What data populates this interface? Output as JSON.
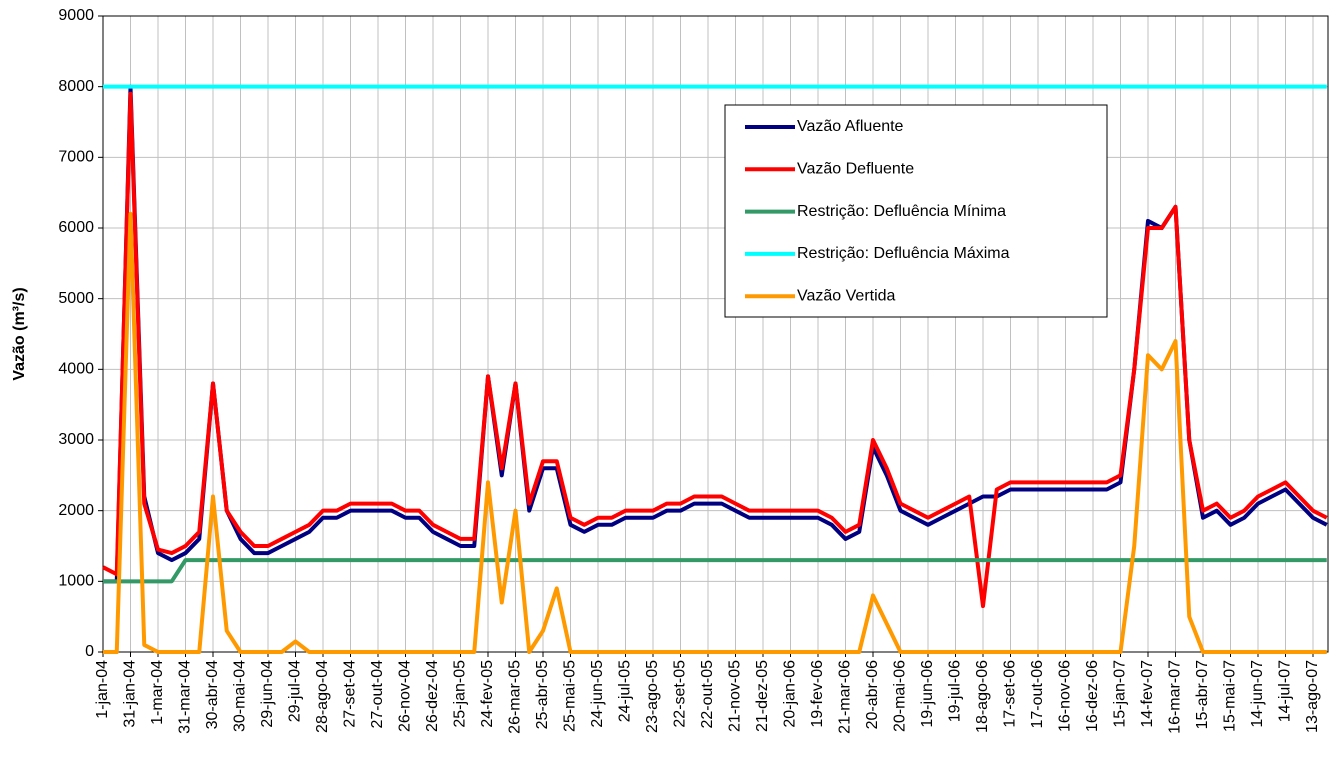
{
  "chart_data": {
    "type": "line",
    "y_label": "Vazão (m³/s)",
    "categories": [
      "1-jan-04",
      null,
      "31-jan-04",
      null,
      "1-mar-04",
      null,
      "31-mar-04",
      null,
      "30-abr-04",
      null,
      "30-mai-04",
      null,
      "29-jun-04",
      null,
      "29-jul-04",
      null,
      "28-ago-04",
      null,
      "27-set-04",
      null,
      "27-out-04",
      null,
      "26-nov-04",
      null,
      "26-dez-04",
      null,
      "25-jan-05",
      null,
      "24-fev-05",
      null,
      "26-mar-05",
      null,
      "25-abr-05",
      null,
      "25-mai-05",
      null,
      "24-jun-05",
      null,
      "24-jul-05",
      null,
      "23-ago-05",
      null,
      "22-set-05",
      null,
      "22-out-05",
      null,
      "21-nov-05",
      null,
      "21-dez-05",
      null,
      "20-jan-06",
      null,
      "19-fev-06",
      null,
      "21-mar-06",
      null,
      "20-abr-06",
      null,
      "20-mai-06",
      null,
      "19-jun-06",
      null,
      "19-jul-06",
      null,
      "18-ago-06",
      null,
      "17-set-06",
      null,
      "17-out-06",
      null,
      "16-nov-06",
      null,
      "16-dez-06",
      null,
      "15-jan-07",
      null,
      "14-fev-07",
      null,
      "16-mar-07",
      null,
      "15-abr-07",
      null,
      "15-mai-07",
      null,
      "14-jun-07",
      null,
      "14-jul-07",
      null,
      "13-ago-07",
      null
    ],
    "series": [
      {
        "name": "Vazão Afluente",
        "color": "#000080",
        "values": [
          1000,
          1000,
          8000,
          2200,
          1400,
          1300,
          1400,
          1600,
          3800,
          2000,
          1600,
          1400,
          1400,
          1500,
          1600,
          1700,
          1900,
          1900,
          2000,
          2000,
          2000,
          2000,
          1900,
          1900,
          1700,
          1600,
          1500,
          1500,
          3900,
          2500,
          3800,
          2000,
          2600,
          2600,
          1800,
          1700,
          1800,
          1800,
          1900,
          1900,
          1900,
          2000,
          2000,
          2100,
          2100,
          2100,
          2000,
          1900,
          1900,
          1900,
          1900,
          1900,
          1900,
          1800,
          1600,
          1700,
          2900,
          2500,
          2000,
          1900,
          1800,
          1900,
          2000,
          2100,
          2200,
          2200,
          2300,
          2300,
          2300,
          2300,
          2300,
          2300,
          2300,
          2300,
          2400,
          4000,
          6100,
          6000,
          6300,
          3000,
          1900,
          2000,
          1800,
          1900,
          2100,
          2200,
          2300,
          2100,
          1900,
          1800
        ]
      },
      {
        "name": "Vazão Defluente",
        "color": "#ff0000",
        "values": [
          1200,
          1100,
          7900,
          2100,
          1450,
          1400,
          1500,
          1700,
          3800,
          2000,
          1700,
          1500,
          1500,
          1600,
          1700,
          1800,
          2000,
          2000,
          2100,
          2100,
          2100,
          2100,
          2000,
          2000,
          1800,
          1700,
          1600,
          1600,
          3900,
          2600,
          3800,
          2100,
          2700,
          2700,
          1900,
          1800,
          1900,
          1900,
          2000,
          2000,
          2000,
          2100,
          2100,
          2200,
          2200,
          2200,
          2100,
          2000,
          2000,
          2000,
          2000,
          2000,
          2000,
          1900,
          1700,
          1800,
          3000,
          2600,
          2100,
          2000,
          1900,
          2000,
          2100,
          2200,
          650,
          2300,
          2400,
          2400,
          2400,
          2400,
          2400,
          2400,
          2400,
          2400,
          2500,
          4000,
          6000,
          6000,
          6300,
          3000,
          2000,
          2100,
          1900,
          2000,
          2200,
          2300,
          2400,
          2200,
          2000,
          1900
        ]
      },
      {
        "name": "Restrição: Defluência Mínima",
        "color": "#339966",
        "values": [
          1000,
          1000,
          1000,
          1000,
          1000,
          1000,
          1300,
          1300,
          1300,
          1300,
          1300,
          1300,
          1300,
          1300,
          1300,
          1300,
          1300,
          1300,
          1300,
          1300,
          1300,
          1300,
          1300,
          1300,
          1300,
          1300,
          1300,
          1300,
          1300,
          1300,
          1300,
          1300,
          1300,
          1300,
          1300,
          1300,
          1300,
          1300,
          1300,
          1300,
          1300,
          1300,
          1300,
          1300,
          1300,
          1300,
          1300,
          1300,
          1300,
          1300,
          1300,
          1300,
          1300,
          1300,
          1300,
          1300,
          1300,
          1300,
          1300,
          1300,
          1300,
          1300,
          1300,
          1300,
          1300,
          1300,
          1300,
          1300,
          1300,
          1300,
          1300,
          1300,
          1300,
          1300,
          1300,
          1300,
          1300,
          1300,
          1300,
          1300,
          1300,
          1300,
          1300,
          1300,
          1300,
          1300,
          1300,
          1300,
          1300,
          1300
        ]
      },
      {
        "name": "Restrição: Defluência Máxima",
        "color": "#00ffff",
        "values": [
          8000,
          8000,
          8000,
          8000,
          8000,
          8000,
          8000,
          8000,
          8000,
          8000,
          8000,
          8000,
          8000,
          8000,
          8000,
          8000,
          8000,
          8000,
          8000,
          8000,
          8000,
          8000,
          8000,
          8000,
          8000,
          8000,
          8000,
          8000,
          8000,
          8000,
          8000,
          8000,
          8000,
          8000,
          8000,
          8000,
          8000,
          8000,
          8000,
          8000,
          8000,
          8000,
          8000,
          8000,
          8000,
          8000,
          8000,
          8000,
          8000,
          8000,
          8000,
          8000,
          8000,
          8000,
          8000,
          8000,
          8000,
          8000,
          8000,
          8000,
          8000,
          8000,
          8000,
          8000,
          8000,
          8000,
          8000,
          8000,
          8000,
          8000,
          8000,
          8000,
          8000,
          8000,
          8000,
          8000,
          8000,
          8000,
          8000,
          8000,
          8000,
          8000,
          8000,
          8000,
          8000,
          8000,
          8000,
          8000,
          8000,
          8000
        ]
      },
      {
        "name": "Vazão Vertida",
        "color": "#ff9900",
        "values": [
          0,
          0,
          6200,
          100,
          0,
          0,
          0,
          0,
          2200,
          300,
          0,
          0,
          0,
          0,
          150,
          0,
          0,
          0,
          0,
          0,
          0,
          0,
          0,
          0,
          0,
          0,
          0,
          0,
          2400,
          700,
          2000,
          0,
          300,
          900,
          0,
          0,
          0,
          0,
          0,
          0,
          0,
          0,
          0,
          0,
          0,
          0,
          0,
          0,
          0,
          0,
          0,
          0,
          0,
          0,
          0,
          0,
          800,
          400,
          0,
          0,
          0,
          0,
          0,
          0,
          0,
          0,
          0,
          0,
          0,
          0,
          0,
          0,
          0,
          0,
          0,
          1500,
          4200,
          4000,
          4400,
          500,
          0,
          0,
          0,
          0,
          0,
          0,
          0,
          0,
          0,
          0
        ]
      }
    ],
    "ylim": [
      0,
      9000
    ],
    "yticks": [
      0,
      1000,
      2000,
      3000,
      4000,
      5000,
      6000,
      7000,
      8000,
      9000
    ],
    "grid": true
  }
}
